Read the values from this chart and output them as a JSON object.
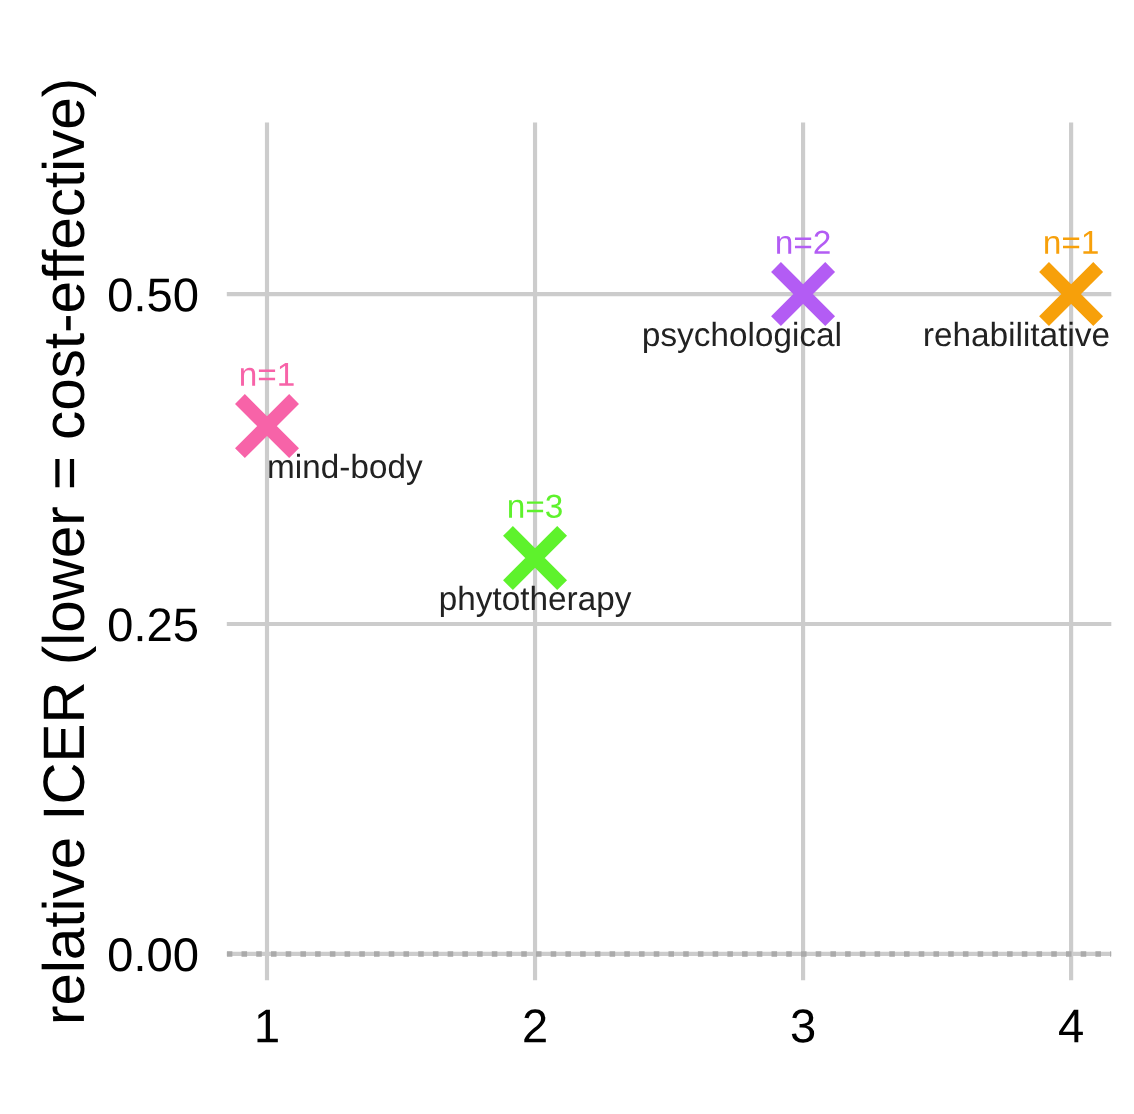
{
  "chart_data": {
    "type": "scatter",
    "ylabel": "relative ICER (lower = cost-effective)",
    "xlim": [
      0.85,
      4.15
    ],
    "ylim": [
      -0.02,
      0.63
    ],
    "xticks": [
      1,
      2,
      3,
      4
    ],
    "yticks": [
      {
        "value": 0,
        "label": "0.00"
      },
      {
        "value": 0.25,
        "label": "0.25"
      },
      {
        "value": 0.5,
        "label": "0.50"
      }
    ],
    "grid": true,
    "legend": false,
    "marker": "cross",
    "series": [
      {
        "name": "mind-body",
        "color": "#f763a8",
        "x": [
          1
        ],
        "values": [
          0.4
        ]
      },
      {
        "name": "phytotherapy",
        "color": "#5ef22c",
        "x": [
          2
        ],
        "values": [
          0.3
        ]
      },
      {
        "name": "psychological",
        "color": "#b35cf4",
        "x": [
          3
        ],
        "values": [
          0.5
        ]
      },
      {
        "name": "rehabilitative",
        "color": "#f7a00a",
        "x": [
          4
        ],
        "values": [
          0.5
        ]
      }
    ],
    "annotations": [
      {
        "text": "n=1",
        "x": 1,
        "y": 0.4
      },
      {
        "text": "n=3",
        "x": 2,
        "y": 0.3
      },
      {
        "text": "n=2",
        "x": 3,
        "y": 0.5
      },
      {
        "text": "n=1",
        "x": 4,
        "y": 0.5
      }
    ],
    "ref_lines": [
      {
        "axis": "y",
        "value": 0,
        "color": "#aaaaaa",
        "line_style": "dotted"
      }
    ]
  }
}
